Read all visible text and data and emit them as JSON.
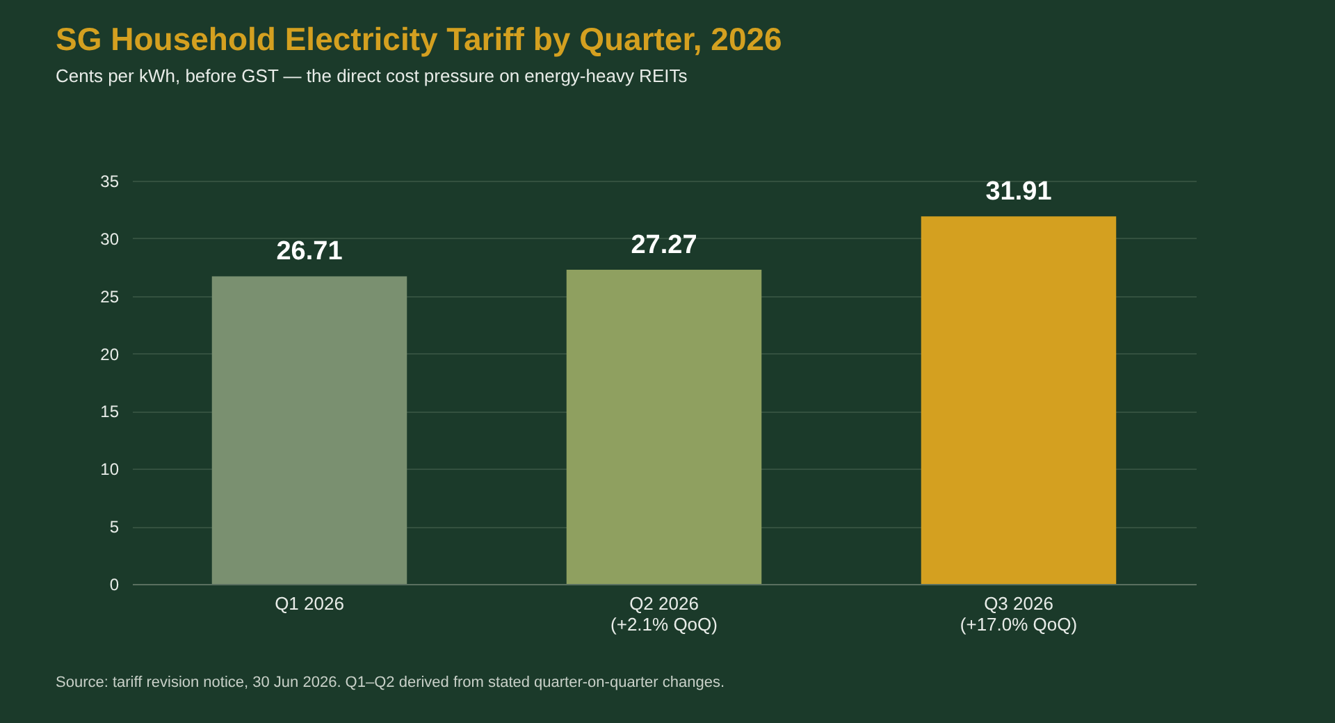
{
  "chart_data": {
    "type": "bar",
    "title": "SG Household Electricity Tariff by Quarter, 2026",
    "subtitle": "Cents per kWh, before GST — the direct cost pressure on energy-heavy REITs",
    "categories": [
      "Q1 2026",
      "Q2 2026\n(+2.1% QoQ)",
      "Q3 2026\n(+17.0% QoQ)"
    ],
    "values": [
      26.71,
      27.27,
      31.91
    ],
    "colors": [
      "#7a9070",
      "#8fa060",
      "#d4a020"
    ],
    "ylim": [
      0,
      35
    ],
    "yticks": [
      0,
      5,
      10,
      15,
      20,
      25,
      30,
      35
    ],
    "grid": "y",
    "data_labels": true,
    "annotations": [
      "Source: tariff revision notice, 30 Jun 2026. Q1–Q2 derived from stated quarter-on-quarter changes."
    ]
  }
}
